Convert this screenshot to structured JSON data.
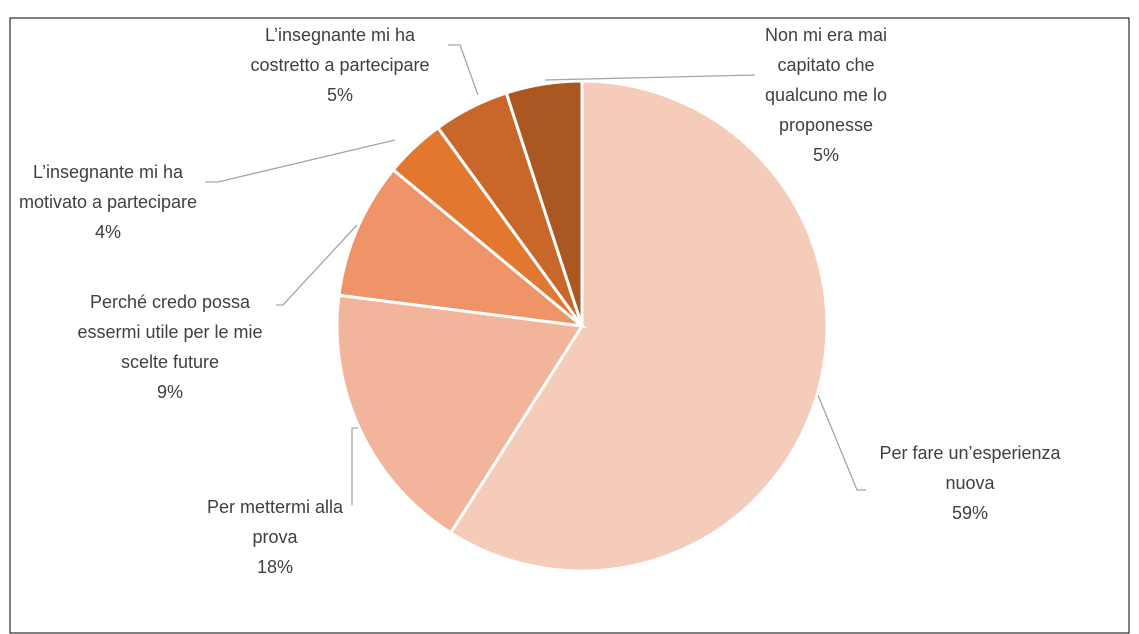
{
  "chart_data": {
    "type": "pie",
    "categories": [
      "Per fare un’esperienza nuova",
      "Per mettermi alla prova",
      "Perché credo possa essermi utile per le mie scelte future",
      "L’insegnante mi ha motivato a partecipare",
      "L’insegnante mi ha costretto a partecipare",
      "Non mi era mai capitato che qualcuno me lo proponesse"
    ],
    "values": [
      59,
      18,
      9,
      4,
      5,
      5
    ],
    "value_labels": [
      "59%",
      "18%",
      "9%",
      "4%",
      "5%",
      "5%"
    ],
    "colors": [
      "#f5cbb9",
      "#f2b49a",
      "#ef9468",
      "#e2772f",
      "#c9662a",
      "#ab5722"
    ]
  }
}
